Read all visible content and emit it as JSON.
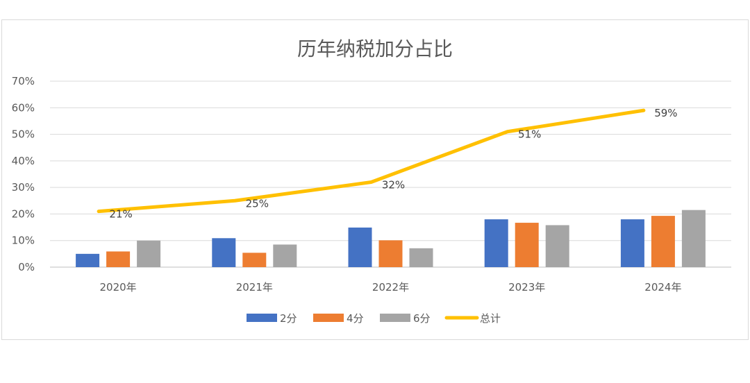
{
  "chart_data": {
    "type": "bar",
    "title": "历年纳税加分占比",
    "categories": [
      "2020年",
      "2021年",
      "2022年",
      "2023年",
      "2024年"
    ],
    "series": [
      {
        "name": "2分",
        "type": "bar",
        "color": "#4472c4",
        "values": [
          0.05,
          0.109,
          0.149,
          0.18,
          0.18
        ]
      },
      {
        "name": "4分",
        "type": "bar",
        "color": "#ed7d31",
        "values": [
          0.059,
          0.054,
          0.101,
          0.167,
          0.193
        ]
      },
      {
        "name": "6分",
        "type": "bar",
        "color": "#a5a5a5",
        "values": [
          0.1,
          0.085,
          0.071,
          0.158,
          0.215
        ]
      },
      {
        "name": "总计",
        "type": "line",
        "color": "#ffc000",
        "values": [
          0.21,
          0.25,
          0.32,
          0.51,
          0.59
        ],
        "data_labels": [
          "21%",
          "25%",
          "32%",
          "51%",
          "59%"
        ]
      }
    ],
    "y_ticks": [
      "0%",
      "10%",
      "20%",
      "30%",
      "40%",
      "50%",
      "60%",
      "70%"
    ],
    "ylim": [
      0,
      0.7
    ],
    "grid": true,
    "legend_position": "bottom"
  }
}
